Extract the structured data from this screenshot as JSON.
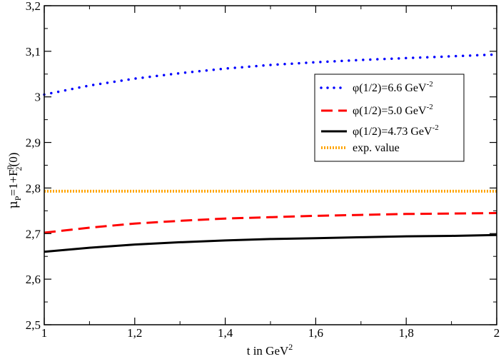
{
  "chart_data": {
    "type": "line",
    "title": "",
    "xlabel": {
      "base": "t in GeV",
      "sup": "2"
    },
    "ylabel": {
      "mu": "μ",
      "mu_sub": "P",
      "eq": "=1+F",
      "f_sup": "p",
      "f_sub": "2",
      "arg": "(0)"
    },
    "xlim": [
      1,
      2
    ],
    "ylim": [
      2.5,
      3.2
    ],
    "x_ticks": [
      {
        "value": 1,
        "label": "1"
      },
      {
        "value": 1.2,
        "label": "1,2"
      },
      {
        "value": 1.4,
        "label": "1,4"
      },
      {
        "value": 1.6,
        "label": "1,6"
      },
      {
        "value": 1.8,
        "label": "1,8"
      },
      {
        "value": 2,
        "label": "2"
      }
    ],
    "y_ticks": [
      {
        "value": 2.5,
        "label": "2,5"
      },
      {
        "value": 2.6,
        "label": "2,6"
      },
      {
        "value": 2.7,
        "label": "2,7"
      },
      {
        "value": 2.8,
        "label": "2,8"
      },
      {
        "value": 2.9,
        "label": "2,9"
      },
      {
        "value": 3.0,
        "label": "3"
      },
      {
        "value": 3.1,
        "label": "3,1"
      },
      {
        "value": 3.2,
        "label": "3,2"
      }
    ],
    "grid": false,
    "legend_position": "upper-right",
    "series": [
      {
        "legend": {
          "main": "φ(1/2)=6.6 GeV",
          "sup": "-2"
        },
        "color": "#0000ff",
        "style": "dotted",
        "x": [
          1.0,
          1.1,
          1.2,
          1.3,
          1.4,
          1.5,
          1.6,
          1.7,
          1.8,
          1.9,
          2.0
        ],
        "y": [
          3.005,
          3.025,
          3.04,
          3.052,
          3.062,
          3.07,
          3.076,
          3.081,
          3.085,
          3.089,
          3.093
        ]
      },
      {
        "legend": {
          "main": "φ(1/2)=5.0 GeV",
          "sup": "-2"
        },
        "color": "#ff0000",
        "style": "dashed",
        "x": [
          1.0,
          1.1,
          1.2,
          1.3,
          1.4,
          1.5,
          1.6,
          1.7,
          1.8,
          1.9,
          2.0
        ],
        "y": [
          2.702,
          2.713,
          2.722,
          2.728,
          2.733,
          2.736,
          2.739,
          2.741,
          2.743,
          2.744,
          2.745
        ]
      },
      {
        "legend": {
          "main": "φ(1/2)=4.73 GeV",
          "sup": "-2"
        },
        "color": "#000000",
        "style": "solid",
        "x": [
          1.0,
          1.1,
          1.2,
          1.3,
          1.4,
          1.5,
          1.6,
          1.7,
          1.8,
          1.9,
          2.0
        ],
        "y": [
          2.66,
          2.669,
          2.676,
          2.681,
          2.685,
          2.688,
          2.69,
          2.692,
          2.694,
          2.695,
          2.697
        ]
      },
      {
        "legend": {
          "main": "exp. value",
          "sup": ""
        },
        "color": "#ffa500",
        "style": "hatched",
        "x": [
          1.0,
          2.0
        ],
        "y": [
          2.793,
          2.793
        ]
      }
    ]
  }
}
